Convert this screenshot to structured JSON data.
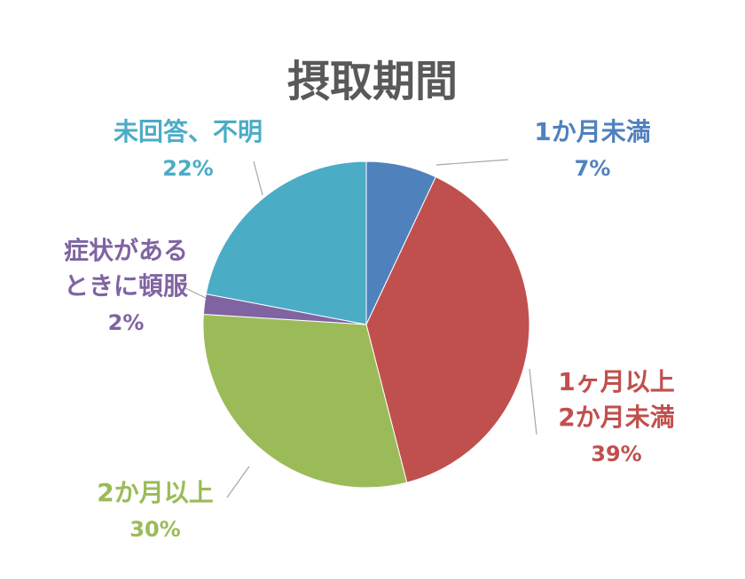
{
  "chart_data": {
    "type": "pie",
    "title": "摂取期間",
    "slices": [
      {
        "name_lines": [
          "1か月未満"
        ],
        "percent_label": "7%",
        "value": 7,
        "color": "#4F81BD"
      },
      {
        "name_lines": [
          "1ヶ月以上",
          "2か月未満"
        ],
        "percent_label": "39%",
        "value": 39,
        "color": "#C0504D"
      },
      {
        "name_lines": [
          "2か月以上"
        ],
        "percent_label": "30%",
        "value": 30,
        "color": "#9BBB59"
      },
      {
        "name_lines": [
          "症状がある",
          "ときに頓服"
        ],
        "percent_label": "2%",
        "value": 2,
        "color": "#8064A2"
      },
      {
        "name_lines": [
          "未回答、不明"
        ],
        "percent_label": "22%",
        "value": 22,
        "color": "#4BACC6"
      }
    ],
    "legend": "none",
    "start_angle": "12 o'clock",
    "direction": "clockwise"
  },
  "colors": {
    "title": "#595959",
    "leader_line": "#a6a6a6"
  }
}
